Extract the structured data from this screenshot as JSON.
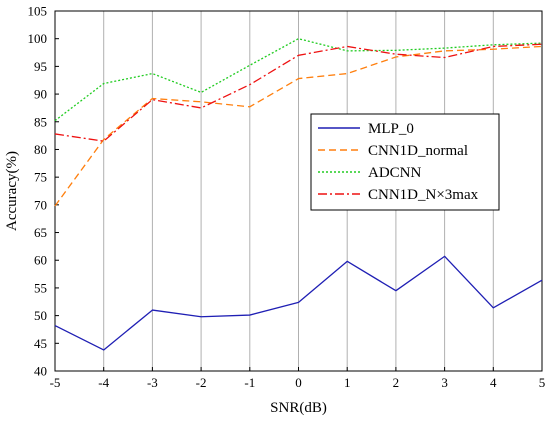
{
  "chart_data": {
    "type": "line",
    "title": "",
    "xlabel": "SNR(dB)",
    "ylabel": "Accuracy(%)",
    "x": [
      -5,
      -4,
      -3,
      -2,
      -1,
      0,
      1,
      2,
      3,
      4,
      5
    ],
    "xlim": [
      -5,
      5
    ],
    "ylim": [
      40,
      105
    ],
    "xticks": [
      "-5",
      "-4",
      "-3",
      "-2",
      "-1",
      "0",
      "1",
      "2",
      "3",
      "4",
      "5"
    ],
    "yticks": [
      "40",
      "45",
      "50",
      "55",
      "60",
      "65",
      "70",
      "75",
      "80",
      "85",
      "90",
      "95",
      "100",
      "105"
    ],
    "grid": "vertical",
    "legend_position": "center-right",
    "series": [
      {
        "name": "MLP_0",
        "color": "#1f1fb4",
        "style": "solid",
        "values": [
          48.2,
          43.8,
          51.0,
          49.8,
          50.1,
          52.4,
          59.8,
          54.5,
          60.7,
          51.4,
          56.4
        ]
      },
      {
        "name": "CNN1D_normal",
        "color": "#ff7f0e",
        "style": "dashed",
        "values": [
          69.8,
          81.8,
          89.2,
          88.6,
          87.7,
          92.8,
          93.7,
          96.7,
          97.8,
          98.1,
          98.6
        ]
      },
      {
        "name": "ADCNN",
        "color": "#22cc22",
        "style": "dotted",
        "values": [
          85.2,
          91.9,
          93.7,
          90.3,
          95.2,
          100.0,
          97.8,
          97.9,
          98.3,
          98.9,
          99.2
        ]
      },
      {
        "name": "CNN1D_N×3max",
        "color": "#ee1111",
        "style": "dashdot",
        "values": [
          82.8,
          81.5,
          89.0,
          87.5,
          91.7,
          97.0,
          98.6,
          97.2,
          96.6,
          98.6,
          99.0
        ]
      }
    ]
  }
}
